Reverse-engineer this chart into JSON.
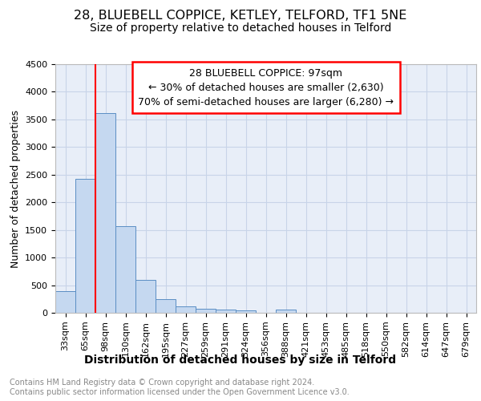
{
  "title": "28, BLUEBELL COPPICE, KETLEY, TELFORD, TF1 5NE",
  "subtitle": "Size of property relative to detached houses in Telford",
  "xlabel": "Distribution of detached houses by size in Telford",
  "ylabel": "Number of detached properties",
  "categories": [
    "33sqm",
    "65sqm",
    "98sqm",
    "130sqm",
    "162sqm",
    "195sqm",
    "227sqm",
    "259sqm",
    "291sqm",
    "324sqm",
    "356sqm",
    "388sqm",
    "421sqm",
    "453sqm",
    "485sqm",
    "518sqm",
    "550sqm",
    "582sqm",
    "614sqm",
    "647sqm",
    "679sqm"
  ],
  "values": [
    390,
    2420,
    3620,
    1570,
    600,
    240,
    115,
    75,
    55,
    45,
    0,
    65,
    0,
    0,
    0,
    0,
    0,
    0,
    0,
    0,
    0
  ],
  "bar_color": "#c5d8f0",
  "bar_edge_color": "#5b8ec4",
  "red_line_x": 1.5,
  "annotation_text": "28 BLUEBELL COPPICE: 97sqm\n← 30% of detached houses are smaller (2,630)\n70% of semi-detached houses are larger (6,280) →",
  "ylim": [
    0,
    4500
  ],
  "yticks": [
    0,
    500,
    1000,
    1500,
    2000,
    2500,
    3000,
    3500,
    4000,
    4500
  ],
  "grid_color": "#c8d4e8",
  "background_color": "#e8eef8",
  "footer_text": "Contains HM Land Registry data © Crown copyright and database right 2024.\nContains public sector information licensed under the Open Government Licence v3.0.",
  "title_fontsize": 11.5,
  "subtitle_fontsize": 10,
  "xlabel_fontsize": 10,
  "ylabel_fontsize": 9,
  "tick_fontsize": 8,
  "annotation_fontsize": 9,
  "footer_fontsize": 7
}
